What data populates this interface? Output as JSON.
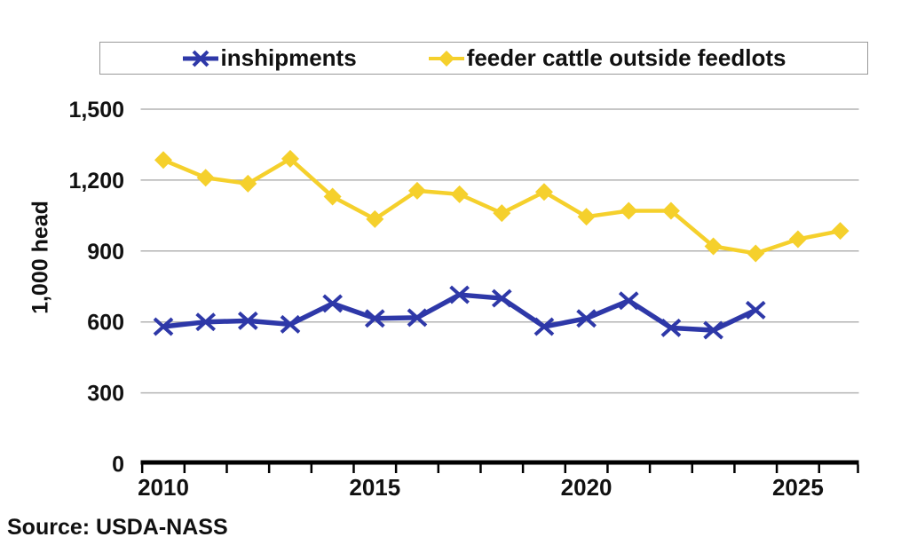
{
  "source": {
    "label": "Source: USDA-NASS"
  },
  "chart_data": {
    "type": "line",
    "title": "",
    "xlabel": "",
    "ylabel": "1,000 head",
    "grid": true,
    "legend_position": "top",
    "ylim": [
      0,
      1500
    ],
    "yticks": [
      0,
      300,
      600,
      900,
      1200,
      1500
    ],
    "ytick_labels": [
      "0",
      "300",
      "600",
      "900",
      "1,200",
      "1,500"
    ],
    "x": [
      2010,
      2011,
      2012,
      2013,
      2014,
      2015,
      2016,
      2017,
      2018,
      2019,
      2020,
      2021,
      2022,
      2023,
      2024,
      2025,
      2026
    ],
    "xtick_labeled_years": [
      2010,
      2015,
      2020,
      2025
    ],
    "xtick_labels": [
      "2010",
      "2015",
      "2020",
      "2025"
    ],
    "series": [
      {
        "name": "inshipments",
        "color": "#2E38A8",
        "marker": "x",
        "values": [
          580,
          600,
          605,
          590,
          678,
          615,
          618,
          715,
          700,
          580,
          615,
          690,
          575,
          565,
          650
        ]
      },
      {
        "name": "feeder cattle outside feedlots",
        "color": "#F5D02C",
        "marker": "diamond",
        "values": [
          1285,
          1210,
          1185,
          1290,
          1130,
          1035,
          1155,
          1140,
          1060,
          1150,
          1045,
          1070,
          1070,
          920,
          890,
          950,
          985
        ]
      }
    ],
    "axis_color": "#000000",
    "gridline_color": "#b3b3b3"
  }
}
